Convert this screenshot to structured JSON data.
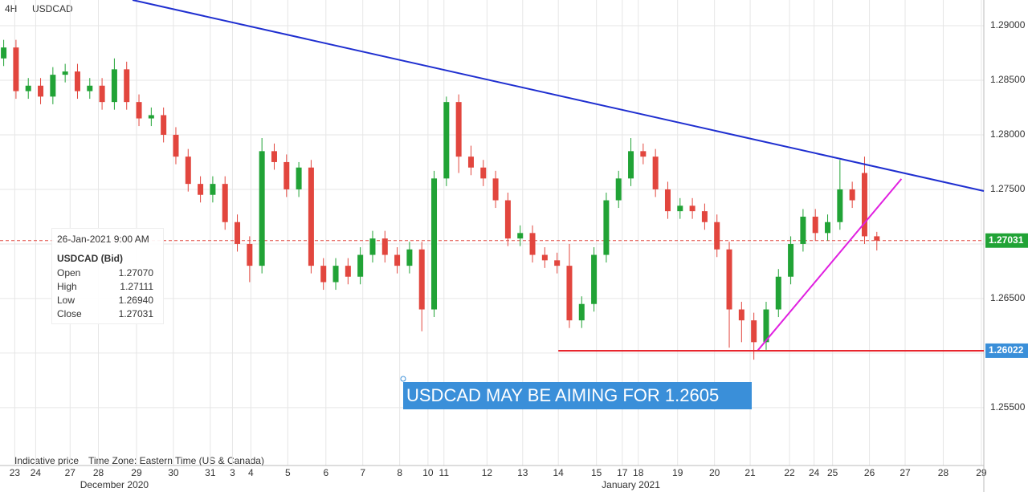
{
  "chart_data": {
    "type": "candlestick",
    "period": "4H",
    "symbol": "USDCAD",
    "ylim": [
      1.2497,
      1.29235
    ],
    "yticks": [
      {
        "value": 1.29,
        "label": "1.29000"
      },
      {
        "value": 1.285,
        "label": "1.28500"
      },
      {
        "value": 1.28,
        "label": "1.28000"
      },
      {
        "value": 1.275,
        "label": "1.27500"
      },
      {
        "value": 1.27,
        "label": "1.27000"
      },
      {
        "value": 1.265,
        "label": "1.26500"
      },
      {
        "value": 1.26,
        "label": "1.26000"
      },
      {
        "value": 1.255,
        "label": "1.25500"
      }
    ],
    "xlim": [
      0,
      80
    ],
    "xticks": [
      {
        "value": 1.2,
        "label": "23"
      },
      {
        "value": 2.9,
        "label": "24"
      },
      {
        "value": 5.7,
        "label": "27"
      },
      {
        "value": 8.0,
        "label": "28"
      },
      {
        "value": 11.1,
        "label": "29"
      },
      {
        "value": 14.1,
        "label": "30"
      },
      {
        "value": 17.1,
        "label": "31"
      },
      {
        "value": 18.9,
        "label": "3"
      },
      {
        "value": 20.4,
        "label": "4"
      },
      {
        "value": 23.4,
        "label": "5"
      },
      {
        "value": 26.5,
        "label": "6"
      },
      {
        "value": 29.5,
        "label": "7"
      },
      {
        "value": 32.5,
        "label": "8"
      },
      {
        "value": 34.8,
        "label": "10"
      },
      {
        "value": 36.1,
        "label": "11"
      },
      {
        "value": 39.6,
        "label": "12"
      },
      {
        "value": 42.5,
        "label": "13"
      },
      {
        "value": 45.4,
        "label": "14"
      },
      {
        "value": 48.5,
        "label": "15"
      },
      {
        "value": 50.6,
        "label": "17"
      },
      {
        "value": 51.9,
        "label": "18"
      },
      {
        "value": 55.1,
        "label": "19"
      },
      {
        "value": 58.1,
        "label": "20"
      },
      {
        "value": 61.0,
        "label": "21"
      },
      {
        "value": 64.2,
        "label": "22"
      },
      {
        "value": 66.2,
        "label": "24"
      },
      {
        "value": 67.7,
        "label": "25"
      },
      {
        "value": 70.7,
        "label": "26"
      },
      {
        "value": 73.6,
        "label": "27"
      },
      {
        "value": 76.7,
        "label": "28"
      },
      {
        "value": 79.8,
        "label": "29"
      }
    ],
    "month_labels": [
      {
        "x": 9.3,
        "label": "December 2020"
      },
      {
        "x": 51.3,
        "label": "January 2021"
      }
    ],
    "up_color": "#21a336",
    "down_color": "#e2463e",
    "open": [
      1.287,
      1.288,
      1.284,
      1.2845,
      1.2835,
      1.2855,
      1.2858,
      1.284,
      1.2845,
      1.283,
      1.286,
      1.283,
      1.2815,
      1.2818,
      1.28,
      1.278,
      1.2755,
      1.2745,
      1.2755,
      1.272,
      1.27,
      1.268,
      1.2785,
      1.2775,
      1.275,
      1.277,
      1.268,
      1.2665,
      1.268,
      1.267,
      1.269,
      1.2705,
      1.269,
      1.268,
      1.2695,
      1.264,
      1.276,
      1.283,
      1.278,
      1.277,
      1.276,
      1.274,
      1.2705,
      1.271,
      1.269,
      1.2685,
      1.268,
      1.263,
      1.2645,
      1.269,
      1.274,
      1.276,
      1.2785,
      1.278,
      1.275,
      1.273,
      1.2735,
      1.273,
      1.272,
      1.2695,
      1.264,
      1.263,
      1.261,
      1.264,
      1.267,
      1.27,
      1.2725,
      1.271,
      1.272,
      1.275,
      1.2765,
      1.2707
    ],
    "high": [
      1.2887,
      1.2887,
      1.2852,
      1.2852,
      1.2862,
      1.2865,
      1.2865,
      1.2852,
      1.2852,
      1.287,
      1.2867,
      1.2837,
      1.2825,
      1.2825,
      1.2807,
      1.2787,
      1.2762,
      1.2762,
      1.2762,
      1.2727,
      1.2707,
      1.2797,
      1.2792,
      1.2782,
      1.2775,
      1.2777,
      1.2687,
      1.2687,
      1.2687,
      1.2697,
      1.2712,
      1.2712,
      1.2697,
      1.2702,
      1.2702,
      1.2767,
      1.2835,
      1.2837,
      1.279,
      1.2777,
      1.2767,
      1.2747,
      1.2717,
      1.2717,
      1.2697,
      1.2692,
      1.27,
      1.2652,
      1.2697,
      1.2747,
      1.2767,
      1.2797,
      1.2792,
      1.2787,
      1.2757,
      1.2742,
      1.2742,
      1.2737,
      1.2727,
      1.2702,
      1.2647,
      1.2637,
      1.2647,
      1.2677,
      1.2707,
      1.2732,
      1.2732,
      1.2727,
      1.2777,
      1.2757,
      1.278,
      1.27111
    ],
    "low": [
      1.2863,
      1.2833,
      1.2833,
      1.2828,
      1.2828,
      1.2848,
      1.2833,
      1.2833,
      1.2823,
      1.2823,
      1.2823,
      1.2808,
      1.2808,
      1.2793,
      1.2773,
      1.2748,
      1.2738,
      1.2738,
      1.2713,
      1.2693,
      1.2665,
      1.2673,
      1.2768,
      1.2743,
      1.2743,
      1.2673,
      1.2658,
      1.2658,
      1.2663,
      1.2663,
      1.2683,
      1.2683,
      1.2673,
      1.2673,
      1.262,
      1.2633,
      1.2753,
      1.2765,
      1.2763,
      1.2753,
      1.2733,
      1.2698,
      1.2698,
      1.2683,
      1.2678,
      1.2673,
      1.2623,
      1.2623,
      1.2638,
      1.2683,
      1.2733,
      1.2753,
      1.2773,
      1.2743,
      1.2723,
      1.2723,
      1.2723,
      1.2713,
      1.2688,
      1.2605,
      1.261,
      1.2594,
      1.2603,
      1.2633,
      1.2663,
      1.2693,
      1.2703,
      1.2703,
      1.2713,
      1.2733,
      1.27,
      1.2694
    ],
    "close": [
      1.288,
      1.284,
      1.2845,
      1.2835,
      1.2855,
      1.2858,
      1.284,
      1.2845,
      1.283,
      1.286,
      1.283,
      1.2815,
      1.2818,
      1.28,
      1.278,
      1.2755,
      1.2745,
      1.2755,
      1.272,
      1.27,
      1.268,
      1.2785,
      1.2775,
      1.275,
      1.277,
      1.268,
      1.2665,
      1.268,
      1.267,
      1.269,
      1.2705,
      1.269,
      1.268,
      1.2695,
      1.264,
      1.276,
      1.283,
      1.278,
      1.277,
      1.276,
      1.274,
      1.2705,
      1.271,
      1.269,
      1.2685,
      1.268,
      1.263,
      1.2645,
      1.269,
      1.274,
      1.276,
      1.2785,
      1.278,
      1.275,
      1.273,
      1.2735,
      1.273,
      1.272,
      1.2695,
      1.264,
      1.263,
      1.261,
      1.264,
      1.267,
      1.27,
      1.2725,
      1.271,
      1.272,
      1.275,
      1.274,
      1.2707,
      1.27031
    ],
    "trendlines": [
      {
        "color": "#1f2fd0",
        "points": [
          [
            10.78,
            1.29235
          ],
          [
            80,
            1.27485
          ]
        ]
      },
      {
        "color": "#e020e0",
        "points": [
          [
            61.6,
            1.26022
          ],
          [
            73.3,
            1.27596
          ]
        ]
      },
      {
        "color": "#e8262e",
        "points": [
          [
            45.4,
            1.26022
          ],
          [
            80,
            1.26022
          ]
        ]
      }
    ],
    "last_price": 1.27031,
    "last_price_color": "#21a336",
    "level_price": 1.26022,
    "level_color": "#3a8fd9",
    "annotation": "USDCAD MAY BE AIMING FOR 1.2605",
    "tooltip": {
      "date": "26-Jan-2021 9:00 AM",
      "heading": "USDCAD (Bid)",
      "rows": [
        {
          "label": "Open",
          "value": "1.27070"
        },
        {
          "label": "High",
          "value": "1.27111"
        },
        {
          "label": "Low",
          "value": "1.26940"
        },
        {
          "label": "Close",
          "value": "1.27031"
        }
      ]
    },
    "notes": [
      "Indicative price",
      "Time Zone: Eastern Time (US & Canada)"
    ]
  }
}
